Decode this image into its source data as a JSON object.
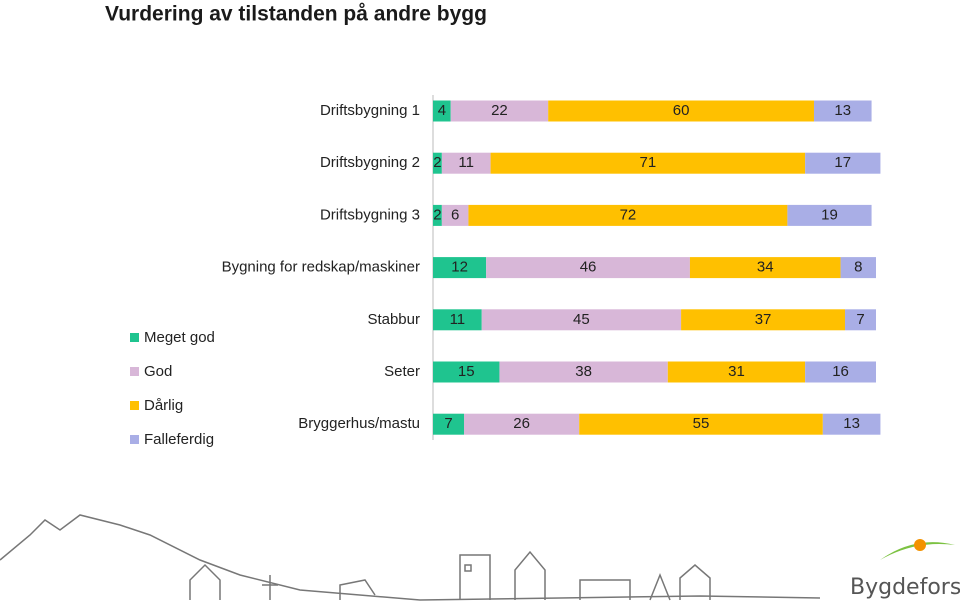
{
  "chart_data": {
    "type": "stacked-barh",
    "title": "Vurdering av tilstanden på andre bygg",
    "categories": [
      "Driftsbygning 1",
      "Driftsbygning 2",
      "Driftsbygning 3",
      "Bygning for redskap/maskiner",
      "Stabbur",
      "Seter",
      "Bryggerhus/mastu"
    ],
    "series": [
      {
        "name": "Meget god",
        "color": "#1fc48f",
        "values": [
          4,
          2,
          2,
          12,
          11,
          15,
          7
        ]
      },
      {
        "name": "God",
        "color": "#d8b7d8",
        "values": [
          22,
          11,
          6,
          46,
          45,
          38,
          26
        ]
      },
      {
        "name": "Dårlig",
        "color": "#ffc000",
        "values": [
          60,
          71,
          72,
          34,
          37,
          31,
          55
        ]
      },
      {
        "name": "Falleferdig",
        "color": "#a9aee6",
        "values": [
          13,
          17,
          19,
          8,
          7,
          16,
          13
        ]
      }
    ],
    "xlim": [
      0,
      100
    ],
    "legend": "left"
  },
  "logo_text": "Bygdeforskning"
}
